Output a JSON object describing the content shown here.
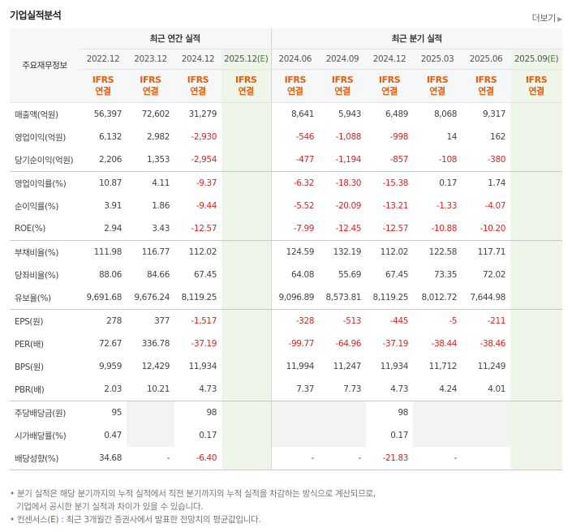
{
  "header": {
    "title": "기업실적분석",
    "more_label": "더보기"
  },
  "table": {
    "label_header": "주요재무정보",
    "annual_group": "최근 연간 실적",
    "quarter_group": "최근 분기 실적",
    "annual_periods": [
      "2022.12",
      "2023.12",
      "2024.12",
      "2025.12(E)"
    ],
    "quarter_periods": [
      "2024.06",
      "2024.09",
      "2024.12",
      "2025.03",
      "2025.06",
      "2025.09(E)"
    ],
    "standard_top": "IFRS",
    "standard_bottom": "연결",
    "rows": [
      {
        "label": "매출액(억원)",
        "annual": [
          "56,397",
          "72,602",
          "31,279",
          ""
        ],
        "quarter": [
          "8,641",
          "5,943",
          "6,489",
          "8,068",
          "9,317",
          ""
        ]
      },
      {
        "label": "영업이익(억원)",
        "annual": [
          "6,132",
          "2,982",
          "-2,930",
          ""
        ],
        "quarter": [
          "-546",
          "-1,088",
          "-998",
          "14",
          "162",
          ""
        ]
      },
      {
        "label": "당기순이익(억원)",
        "annual": [
          "2,206",
          "1,353",
          "-2,954",
          ""
        ],
        "quarter": [
          "-477",
          "-1,194",
          "-857",
          "-108",
          "-380",
          ""
        ]
      },
      {
        "label": "영업이익률(%)",
        "annual": [
          "10.87",
          "4.11",
          "-9.37",
          ""
        ],
        "quarter": [
          "-6.32",
          "-18.30",
          "-15.38",
          "0.17",
          "1.74",
          ""
        ]
      },
      {
        "label": "순이익률(%)",
        "annual": [
          "3.91",
          "1.86",
          "-9.44",
          ""
        ],
        "quarter": [
          "-5.52",
          "-20.09",
          "-13.21",
          "-1.33",
          "-4.07",
          ""
        ]
      },
      {
        "label": "ROE(%)",
        "annual": [
          "2.94",
          "3.43",
          "-12.57",
          ""
        ],
        "quarter": [
          "-7.99",
          "-12.45",
          "-12.57",
          "-10.88",
          "-10.20",
          ""
        ]
      },
      {
        "label": "부채비율(%)",
        "annual": [
          "111.98",
          "116.77",
          "112.02",
          ""
        ],
        "quarter": [
          "124.59",
          "132.19",
          "112.02",
          "122.58",
          "117.71",
          ""
        ]
      },
      {
        "label": "당좌비율(%)",
        "annual": [
          "88.06",
          "84.66",
          "67.45",
          ""
        ],
        "quarter": [
          "64.08",
          "55.69",
          "67.45",
          "73.35",
          "72.02",
          ""
        ]
      },
      {
        "label": "유보율(%)",
        "annual": [
          "9,691.68",
          "9,676.24",
          "8,119.25",
          ""
        ],
        "quarter": [
          "9,096.89",
          "8,573.81",
          "8,119.25",
          "8,012.72",
          "7,644.98",
          ""
        ]
      },
      {
        "label": "EPS(원)",
        "annual": [
          "278",
          "377",
          "-1,517",
          ""
        ],
        "quarter": [
          "-328",
          "-513",
          "-445",
          "-5",
          "-211",
          ""
        ]
      },
      {
        "label": "PER(배)",
        "annual": [
          "72.67",
          "336.78",
          "-37.19",
          ""
        ],
        "quarter": [
          "-99.77",
          "-64.96",
          "-37.19",
          "-38.44",
          "-38.46",
          ""
        ]
      },
      {
        "label": "BPS(원)",
        "annual": [
          "9,959",
          "12,429",
          "11,934",
          ""
        ],
        "quarter": [
          "11,994",
          "11,247",
          "11,934",
          "11,712",
          "11,249",
          ""
        ]
      },
      {
        "label": "PBR(배)",
        "annual": [
          "2.03",
          "10.21",
          "4.73",
          ""
        ],
        "quarter": [
          "7.37",
          "7.73",
          "4.73",
          "4.24",
          "4.01",
          ""
        ]
      },
      {
        "label": "주당배당금(원)",
        "annual": [
          "95",
          "",
          "98",
          ""
        ],
        "quarter": [
          "",
          "",
          "98",
          "",
          "",
          ""
        ]
      },
      {
        "label": "시가배당률(%)",
        "annual": [
          "0.47",
          "",
          "0.17",
          ""
        ],
        "quarter": [
          "",
          "",
          "0.17",
          "",
          "",
          ""
        ]
      },
      {
        "label": "배당성향(%)",
        "annual": [
          "34.68",
          "-",
          "-6.40",
          ""
        ],
        "quarter": [
          "-",
          "-",
          "-21.83",
          "-",
          "",
          ""
        ]
      }
    ]
  },
  "notes": {
    "line1": "분기 실적은 해당 분기까지의 누적 실적에서 직전 분기까지의 누적 실적을 차감하는 방식으로 계산되므로,",
    "line2": "기업에서 공시한 분기 실적과 차이가 있을 수 있습니다.",
    "line3_prefix": "컨센서스(",
    "line3_mark": "E",
    "line3_suffix": ") : 최근 3개월간 증권사에서 발표한 전망치의 평균값입니다."
  },
  "colors": {
    "negative": "#e32222",
    "standard": "#e65e09",
    "estimate_bg": "#eef6ea",
    "estimate_mark": "#3c8c2e"
  }
}
